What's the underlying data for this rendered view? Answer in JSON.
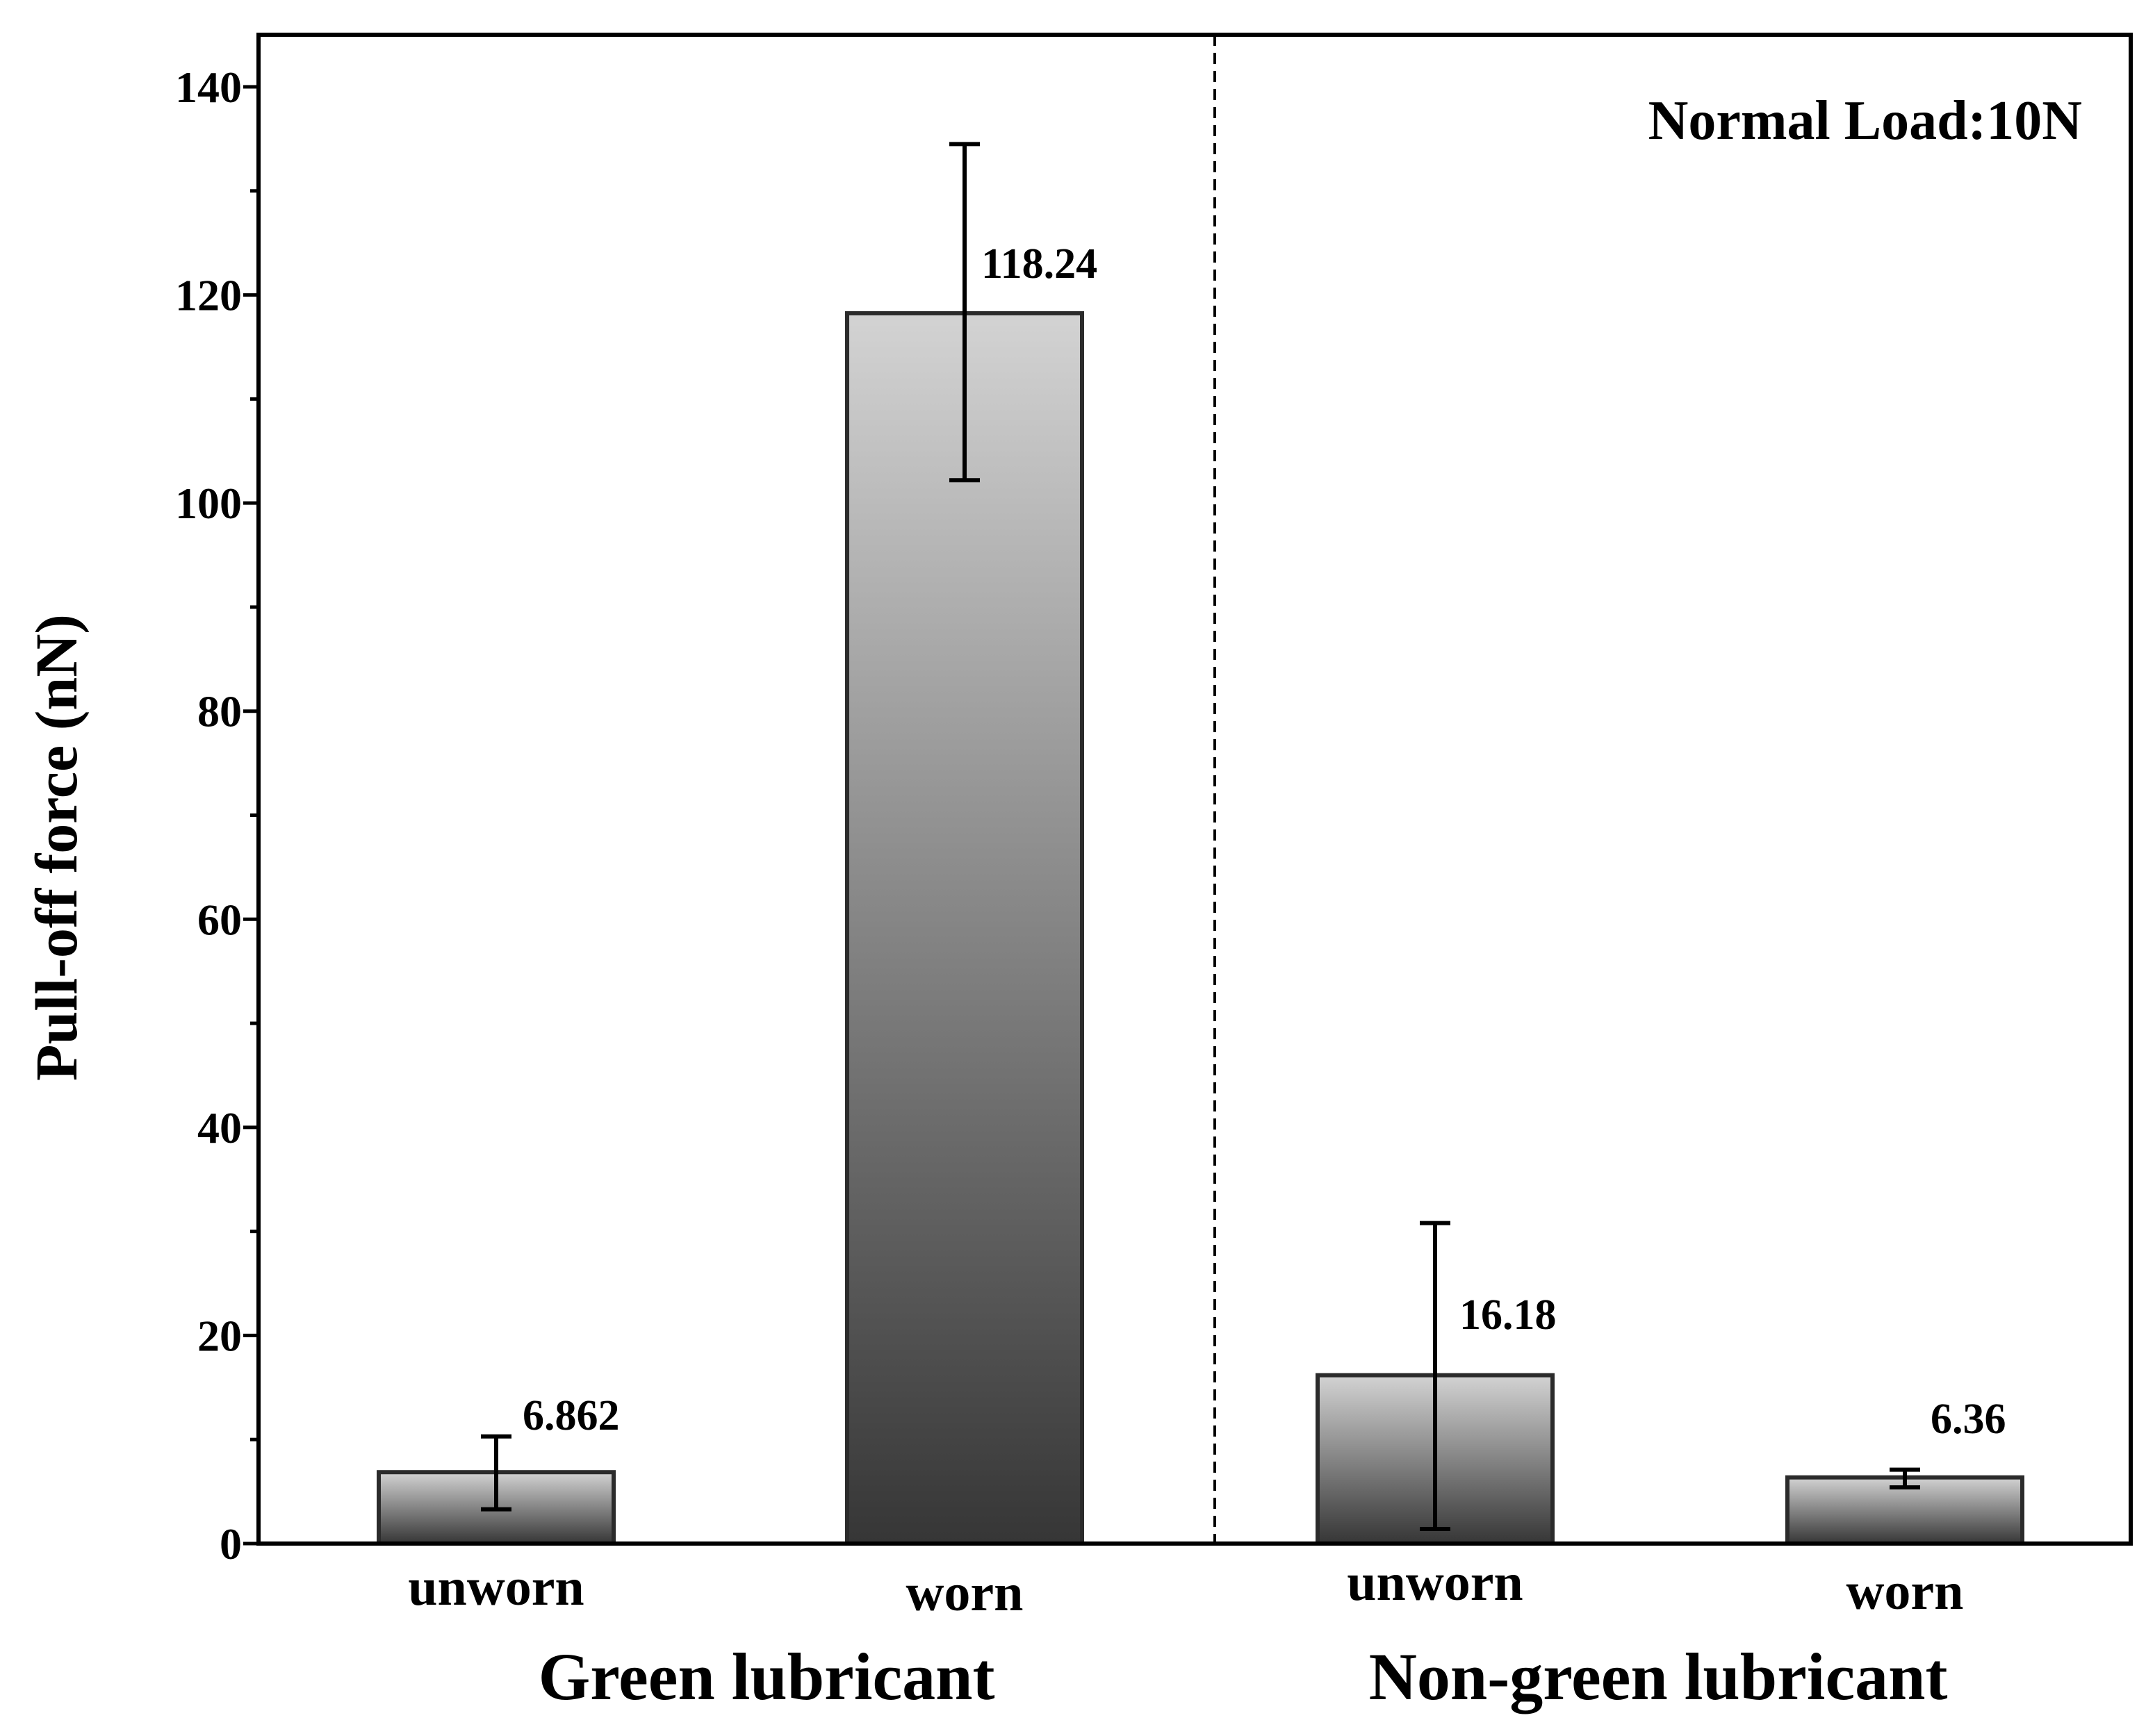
{
  "chart_data": {
    "type": "bar",
    "title": "",
    "xlabel": "",
    "ylabel": "Pull-off force (nN)",
    "ylim": [
      0,
      145
    ],
    "yticks": [
      0,
      20,
      40,
      60,
      80,
      100,
      120,
      140
    ],
    "annotation": "Normal Load:10N",
    "categories": [
      "unworn",
      "worn",
      "unworn",
      "worn"
    ],
    "groups": [
      {
        "label": "Green lubricant",
        "categories": [
          0,
          1
        ]
      },
      {
        "label": "Non-green lubricant",
        "categories": [
          2,
          3
        ]
      }
    ],
    "values": [
      6.862,
      118.24,
      16.18,
      6.36
    ],
    "value_labels": [
      "6.862",
      "118.24",
      "16.18",
      "6.36"
    ],
    "error_low": [
      3.3,
      102.2,
      1.4,
      5.4
    ],
    "error_high": [
      10.3,
      134.5,
      30.8,
      7.1
    ],
    "colors": {
      "bar_light": "#d3d3d3",
      "bar_dark": "#363636",
      "bar_edge": "#2b2b2b",
      "axis": "#000000"
    }
  }
}
